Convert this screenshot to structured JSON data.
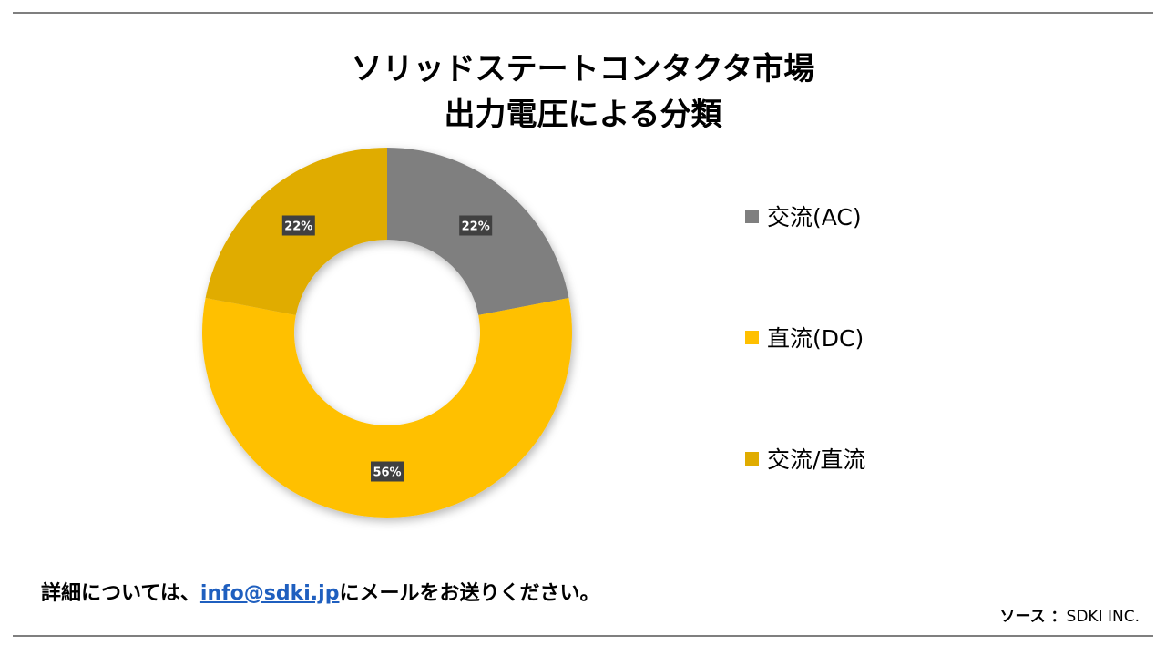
{
  "title": {
    "line1": "ソリッドステートコンタクタ市場",
    "line2": "出力電圧による分類"
  },
  "footer": {
    "before": "詳細については、",
    "email": "info@sdki.jp",
    "after": "にメールをお送りください。"
  },
  "source": {
    "label": "ソース ：",
    "value": "SDKI INC."
  },
  "colors": {
    "ac": "#7f7f7f",
    "dc": "#ffc000",
    "acdc": "#e0ac00",
    "label_bg": "#404040"
  },
  "chart_data": {
    "type": "pie",
    "variant": "donut",
    "title": "ソリッドステートコンタクタ市場 出力電圧による分類",
    "categories": [
      "交流(AC)",
      "直流(DC)",
      "交流/直流"
    ],
    "values": [
      22,
      56,
      22
    ],
    "data_labels": [
      "22%",
      "56%",
      "22%"
    ],
    "legend_position": "right"
  }
}
